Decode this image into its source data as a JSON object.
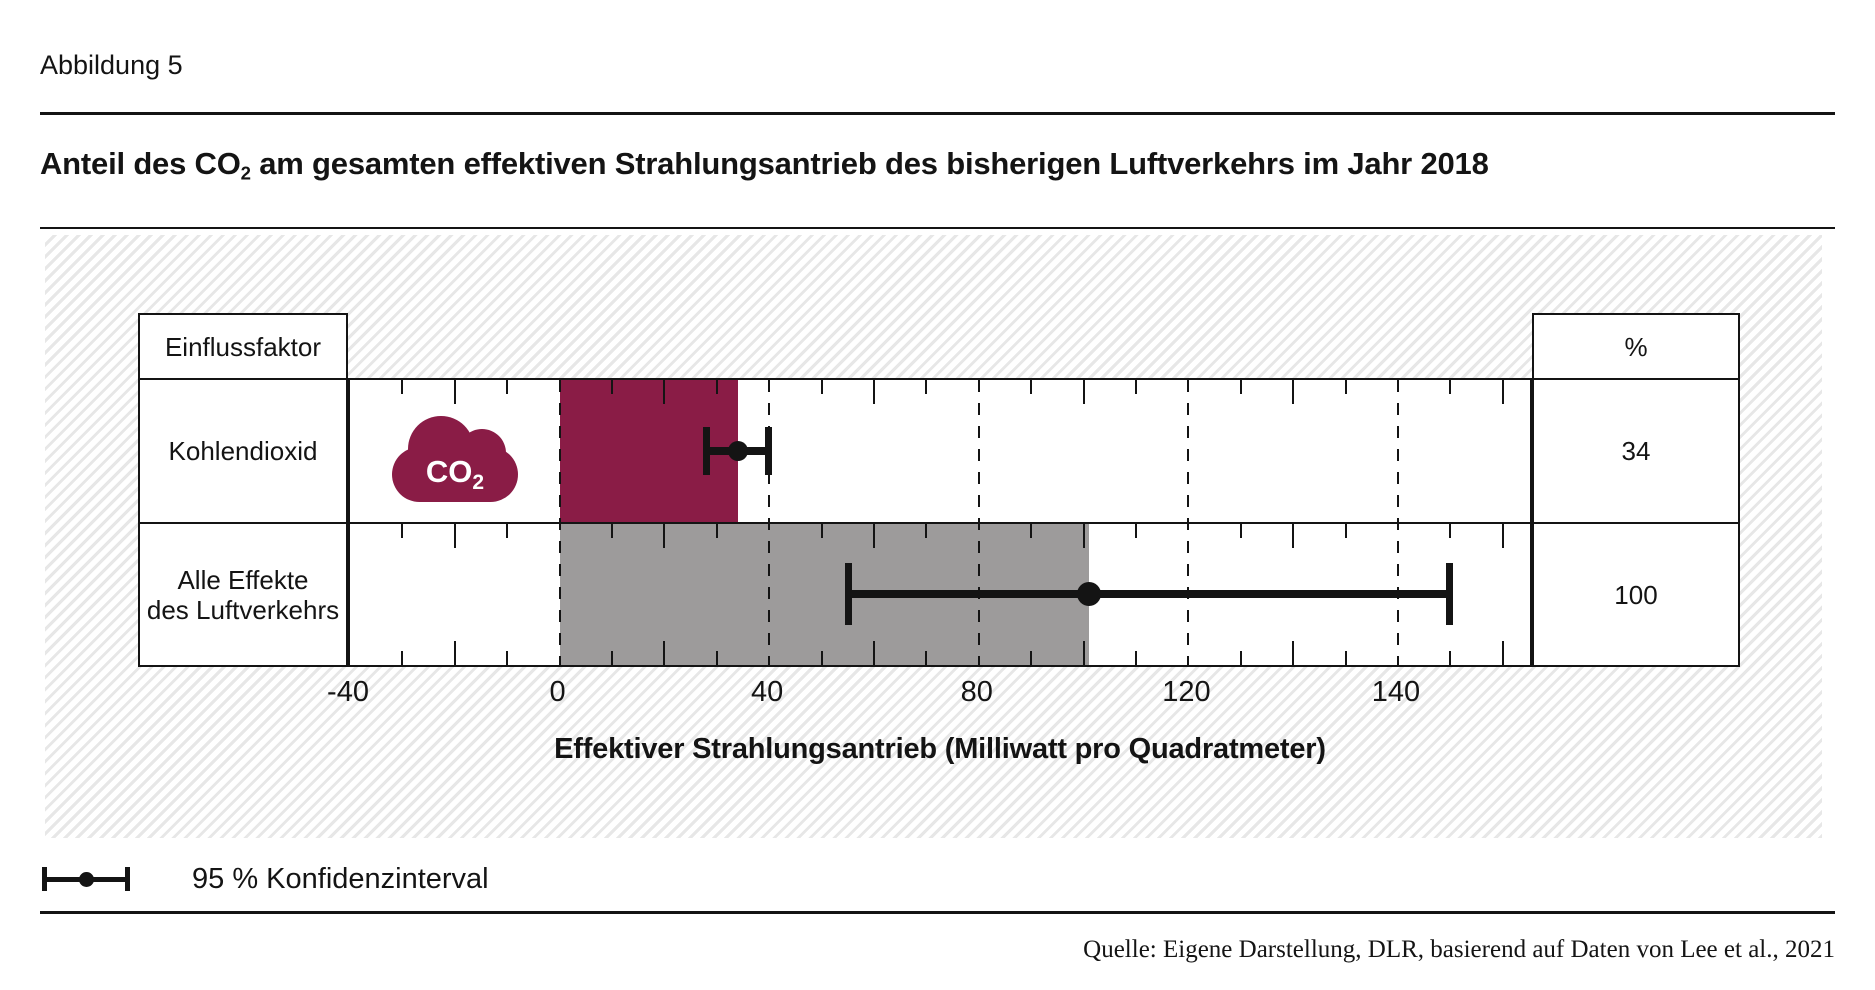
{
  "figure": {
    "label": "Abbildung 5",
    "title_pre": "Anteil des CO",
    "title_sub": "2",
    "title_post": " am gesamten effektiven Strahlungsantrieb des bisherigen Luftverkehrs im Jahr 2018"
  },
  "table": {
    "header_left": "Einflussfaktor",
    "header_right": "%",
    "row_labels": [
      [
        "Kohlendioxid"
      ],
      [
        "Alle Effekte",
        "des Luftverkehrs"
      ]
    ]
  },
  "icon": {
    "co2_pre": "CO",
    "co2_sub": "2"
  },
  "chart_data": {
    "type": "bar",
    "orientation": "horizontal",
    "categories": [
      "Kohlendioxid",
      "Alle Effekte des Luftverkehrs"
    ],
    "values": [
      34,
      101
    ],
    "ci_95": [
      [
        28,
        40
      ],
      [
        55,
        145
      ]
    ],
    "percent_labels": [
      "34",
      "100"
    ],
    "x_ticks": [
      -40,
      0,
      40,
      80,
      120,
      140
    ],
    "xlabel": "Effektiver Strahlungsantrieb (Milliwatt pro Quadratmeter)",
    "legend": "95 % Konfidenzinterval",
    "bar_colors": [
      "#8a1c46",
      "#9d9b9b"
    ],
    "errorbar_color": "#141414",
    "grid": "dashed vertical lines at labeled ticks"
  },
  "legend": {
    "label": "95 % Konfidenzinterval"
  },
  "source": {
    "text": "Quelle: Eigene Darstellung, DLR, basierend auf Daten von Lee et al., 2021"
  }
}
